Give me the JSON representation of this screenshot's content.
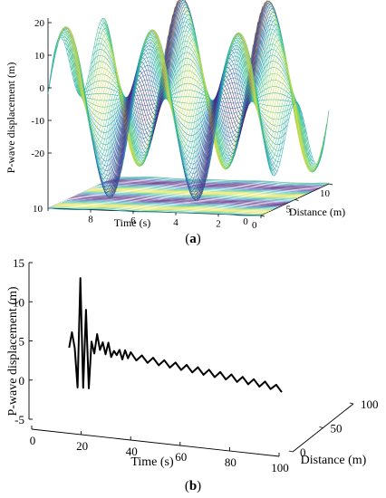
{
  "chart_data": [
    {
      "type": "surface3d",
      "caption_letter": "a",
      "zlabel": "P-wave displacement (m)",
      "xlabel": "Time (s)",
      "ylabel": "Distance (m)",
      "zticks": [
        20,
        10,
        0,
        -10,
        -20
      ],
      "xticks": [
        10,
        8,
        6,
        4,
        2,
        0
      ],
      "yticks": [
        0,
        5,
        10
      ],
      "zlim": [
        -28,
        28
      ],
      "xlim": [
        0,
        10
      ],
      "ylim": [
        0,
        10
      ],
      "grid": true,
      "colormap": [
        "#4b0c6b",
        "#3b5bb8",
        "#21a6b6",
        "#3ec98a",
        "#f2e23a"
      ]
    },
    {
      "type": "line3d",
      "caption_letter": "b",
      "zlabel": "P-wave displacement (m)",
      "xlabel": "Time (s)",
      "ylabel": "Distance (m)",
      "zticks": [
        15,
        10,
        5,
        0,
        -5
      ],
      "xticks": [
        0,
        20,
        40,
        60,
        80,
        100
      ],
      "yticks": [
        0,
        50,
        100
      ],
      "zlim": [
        -5,
        15
      ],
      "xlim": [
        0,
        100
      ],
      "ylim": [
        0,
        100
      ],
      "series": [
        {
          "color": "#000000",
          "points": [
            [
              24,
              4
            ],
            [
              25,
              6
            ],
            [
              26,
              4
            ],
            [
              27,
              -1
            ],
            [
              28,
              13
            ],
            [
              29,
              -1
            ],
            [
              30,
              9
            ],
            [
              31,
              -1
            ],
            [
              32,
              5
            ],
            [
              33,
              3.5
            ],
            [
              34,
              6
            ],
            [
              35,
              4
            ],
            [
              36,
              5
            ],
            [
              37,
              3.5
            ],
            [
              38,
              5
            ],
            [
              39,
              3.2
            ],
            [
              40,
              4
            ],
            [
              41,
              3.5
            ],
            [
              42,
              4.2
            ],
            [
              43,
              3
            ],
            [
              44,
              4.2
            ],
            [
              45,
              3.2
            ],
            [
              46,
              4
            ],
            [
              48,
              3
            ],
            [
              50,
              3.7
            ],
            [
              52,
              2.8
            ],
            [
              54,
              3.5
            ],
            [
              56,
              2.6
            ],
            [
              58,
              3.3
            ],
            [
              60,
              2.4
            ],
            [
              62,
              3.1
            ],
            [
              64,
              2.2
            ],
            [
              66,
              2.9
            ],
            [
              68,
              2.0
            ],
            [
              70,
              2.7
            ],
            [
              72,
              1.8
            ],
            [
              74,
              2.5
            ],
            [
              76,
              1.6
            ],
            [
              78,
              2.3
            ],
            [
              80,
              1.4
            ],
            [
              82,
              2.1
            ],
            [
              84,
              1.2
            ],
            [
              86,
              1.9
            ],
            [
              88,
              1.0
            ],
            [
              90,
              1.7
            ],
            [
              92,
              0.8
            ],
            [
              94,
              1.5
            ],
            [
              96,
              0.6
            ],
            [
              98,
              1.2
            ],
            [
              100,
              0.3
            ]
          ]
        }
      ]
    }
  ]
}
